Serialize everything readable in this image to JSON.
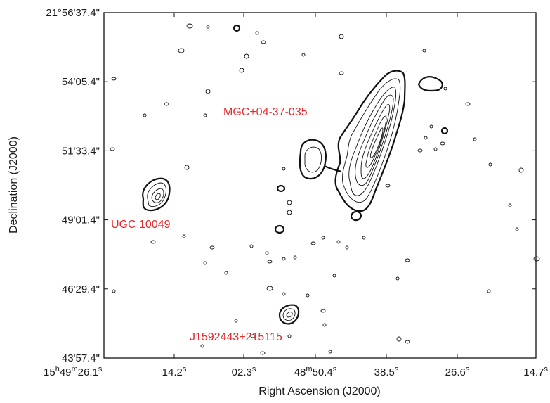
{
  "chart_data": {
    "type": "contour",
    "title": "",
    "xlabel": "Right Ascension (J2000)",
    "ylabel": "Declination (J2000)",
    "x_tick_labels": [
      {
        "main": "15",
        "sup1": "h",
        "mid": "49",
        "sup2": "m",
        "last": "26.1",
        "sup3": "s"
      },
      {
        "main": "14.2",
        "sup1": "s"
      },
      {
        "main": "02.3",
        "sup1": "s"
      },
      {
        "main": "48",
        "sup1": "m",
        "mid": "50.4",
        "sup2": "s"
      },
      {
        "main": "38.5",
        "sup1": "s"
      },
      {
        "main": "26.6",
        "sup1": "s"
      },
      {
        "main": "14.7",
        "sup1": "s"
      }
    ],
    "y_tick_labels": [
      "21°56'37.4\"",
      "54'05.4\"",
      "51'33.4\"",
      "49'01.4\"",
      "46'29.4\"",
      "43'57.4\""
    ],
    "annotations": [
      {
        "text": "MGC+04-37-035"
      },
      {
        "text": "UGC 10049"
      },
      {
        "text": "J1592443+215115"
      }
    ],
    "sources": [
      {
        "name": "MGC+04-37-035",
        "type": "extended"
      },
      {
        "name": "UGC 10049",
        "type": "compact"
      },
      {
        "name": "J1592443+215115",
        "type": "compact"
      }
    ]
  }
}
